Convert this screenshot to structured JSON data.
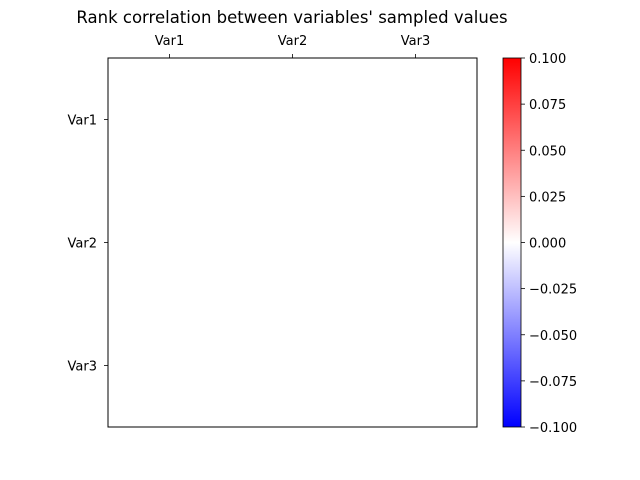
{
  "chart_data": {
    "type": "heatmap",
    "title": "Rank correlation between variables' sampled values",
    "x_categories": [
      "Var1",
      "Var2",
      "Var3"
    ],
    "y_categories": [
      "Var1",
      "Var2",
      "Var3"
    ],
    "values": [
      [
        0,
        0,
        0
      ],
      [
        0,
        0,
        0
      ],
      [
        0,
        0,
        0
      ]
    ],
    "colormap": "bwr",
    "colors": {
      "low": "#0000ff",
      "mid": "#ffffff",
      "high": "#ff0000"
    },
    "vmin": -0.1,
    "vmax": 0.1,
    "x_tick_position": "top",
    "grid": false,
    "colorbar": {
      "ticks": [
        "0.100",
        "0.075",
        "0.050",
        "0.025",
        "0.000",
        "−0.025",
        "−0.050",
        "−0.075",
        "−0.100"
      ],
      "tick_values": [
        0.1,
        0.075,
        0.05,
        0.025,
        0,
        -0.025,
        -0.05,
        -0.075,
        -0.1
      ]
    }
  }
}
